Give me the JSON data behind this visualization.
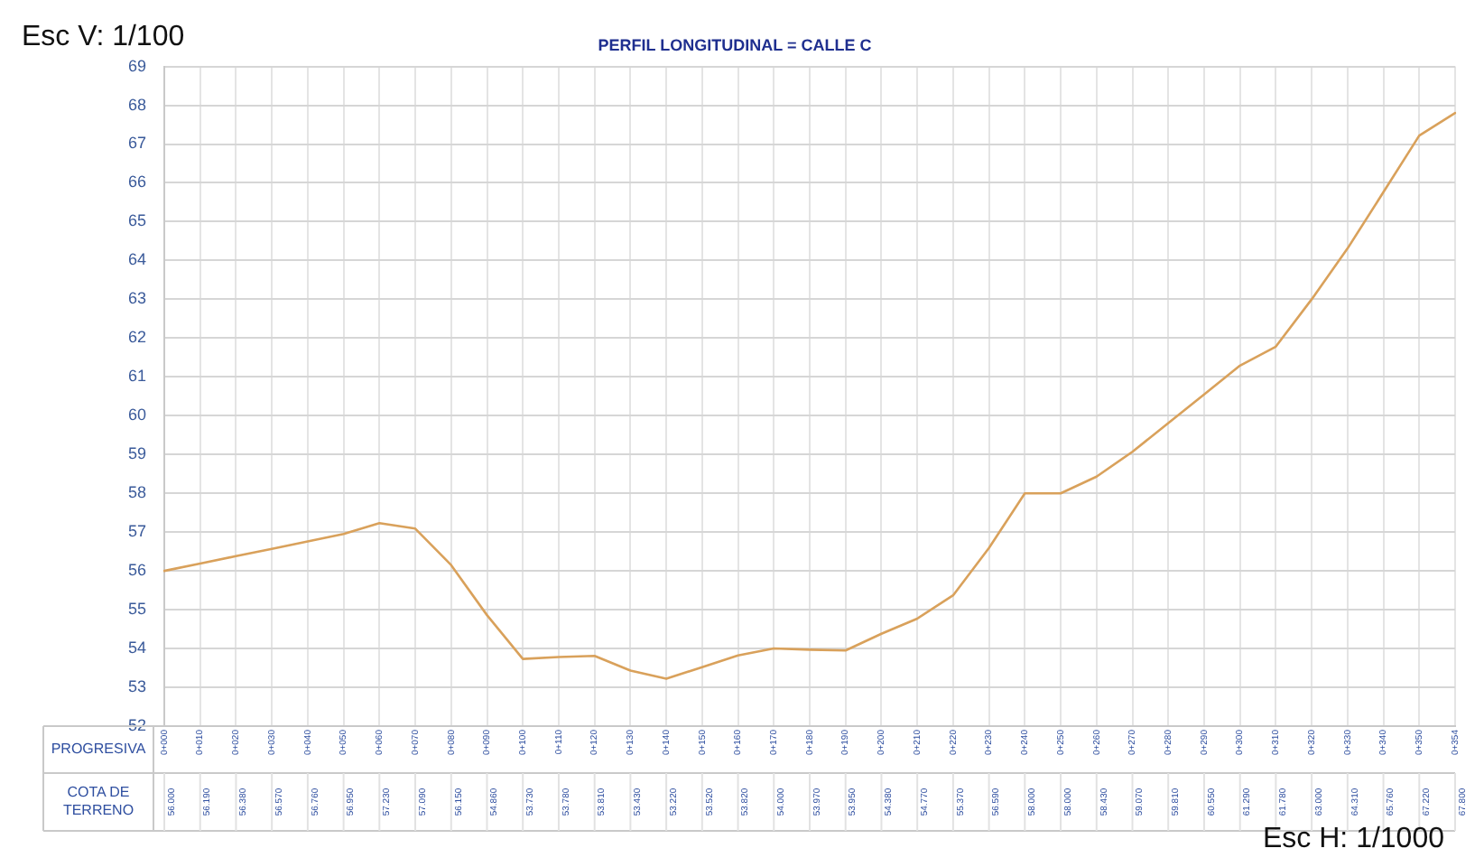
{
  "chart_data": {
    "type": "line",
    "title": "PERFIL LONGITUDINAL = CALLE C",
    "xlabel": "PROGRESIVA",
    "annotations": [
      "Esc V: 1/100",
      "Esc H: 1/1000",
      "COTA DE TERRENO"
    ],
    "categories": [
      "0+000",
      "0+010",
      "0+020",
      "0+030",
      "0+040",
      "0+050",
      "0+060",
      "0+070",
      "0+080",
      "0+090",
      "0+100",
      "0+110",
      "0+120",
      "0+130",
      "0+140",
      "0+150",
      "0+160",
      "0+170",
      "0+180",
      "0+190",
      "0+200",
      "0+210",
      "0+220",
      "0+230",
      "0+240",
      "0+250",
      "0+260",
      "0+270",
      "0+280",
      "0+290",
      "0+300",
      "0+310",
      "0+320",
      "0+330",
      "0+340",
      "0+350",
      "0+354"
    ],
    "series": [
      {
        "color": "#d9a15b",
        "values": [
          56.0,
          56.19,
          56.38,
          56.57,
          56.76,
          56.95,
          57.23,
          57.09,
          56.15,
          54.86,
          53.73,
          53.78,
          53.81,
          53.43,
          53.22,
          53.52,
          53.82,
          54.0,
          53.97,
          53.95,
          54.38,
          54.77,
          55.37,
          56.59,
          58.0,
          58.0,
          58.43,
          59.07,
          59.81,
          60.55,
          61.29,
          61.78,
          63.0,
          64.31,
          65.76,
          67.22,
          67.8
        ],
        "value_labels": [
          "56.000",
          "56.190",
          "56.380",
          "56.570",
          "56.760",
          "56.950",
          "57.230",
          "57.090",
          "56.150",
          "54.860",
          "53.730",
          "53.780",
          "53.810",
          "53.430",
          "53.220",
          "53.520",
          "53.820",
          "54.000",
          "53.970",
          "53.950",
          "54.380",
          "54.770",
          "55.370",
          "56.590",
          "58.000",
          "58.000",
          "58.430",
          "59.070",
          "59.810",
          "60.550",
          "61.290",
          "61.780",
          "63.000",
          "64.310",
          "65.760",
          "67.220",
          "67.800"
        ]
      }
    ],
    "ylim": [
      52,
      69
    ],
    "yticks": [
      52,
      53,
      54,
      55,
      56,
      57,
      58,
      59,
      60,
      61,
      62,
      63,
      64,
      65,
      66,
      67,
      68,
      69
    ],
    "grid": true,
    "legend": false,
    "marker": "none",
    "line_style": "solid"
  }
}
